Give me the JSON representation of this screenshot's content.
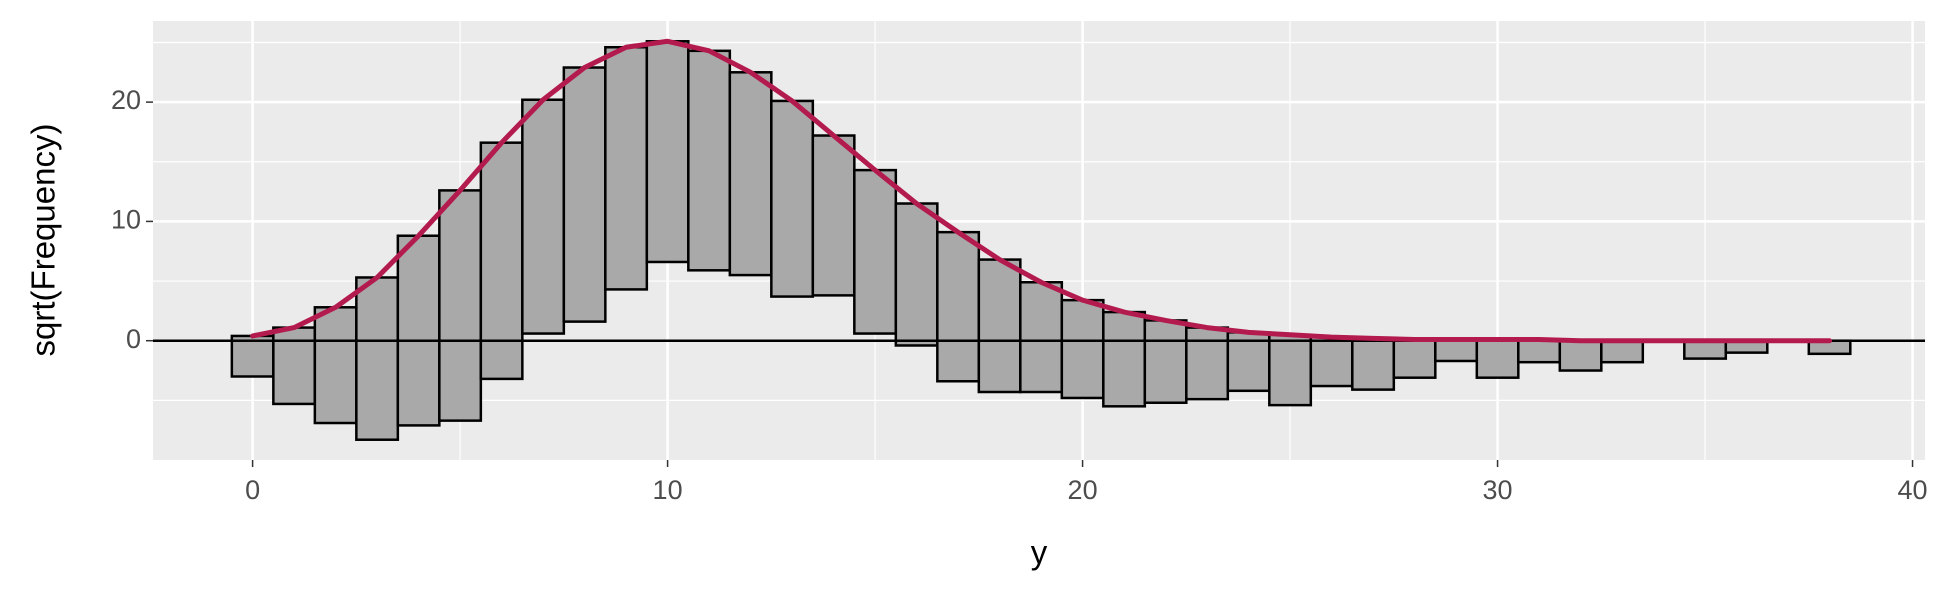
{
  "chart_data": {
    "type": "rootogram",
    "x_label": "y",
    "y_label": "sqrt(Frequency)",
    "x": [
      0,
      1,
      2,
      3,
      4,
      5,
      6,
      7,
      8,
      9,
      10,
      11,
      12,
      13,
      14,
      15,
      16,
      17,
      18,
      19,
      20,
      21,
      22,
      23,
      24,
      25,
      26,
      27,
      28,
      29,
      30,
      31,
      32,
      33,
      34,
      35,
      36,
      37,
      38
    ],
    "values": [
      3.4,
      6.4,
      9.7,
      13.6,
      15.9,
      19.3,
      19.8,
      19.6,
      21.3,
      20.3,
      18.5,
      18.4,
      17.0,
      16.4,
      13.4,
      13.7,
      11.9,
      12.5,
      11.1,
      9.2,
      8.2,
      7.9,
      6.9,
      6.0,
      4.9,
      5.9,
      4.1,
      4.3,
      3.2,
      1.8,
      3.2,
      1.9,
      2.5,
      1.8,
      0,
      1.5,
      1.0,
      0,
      1.1
    ],
    "fitted": [
      0.4,
      1.1,
      2.8,
      5.3,
      8.8,
      12.6,
      16.6,
      20.2,
      22.9,
      24.6,
      25.1,
      24.3,
      22.5,
      20.1,
      17.2,
      14.3,
      11.5,
      9.1,
      6.8,
      4.9,
      3.4,
      2.4,
      1.7,
      1.1,
      0.7,
      0.5,
      0.3,
      0.2,
      0.1,
      0.1,
      0.1,
      0.1,
      0,
      0,
      0,
      0,
      0,
      0,
      0
    ],
    "bar_color": "#a9a9a9",
    "line_color": "#b31b4f",
    "xlim": [
      -2.4,
      40.3
    ],
    "ylim": [
      -10,
      26.8
    ],
    "xticks": [
      0,
      10,
      20,
      30,
      40
    ],
    "yticks": [
      0,
      10,
      20
    ],
    "grid": true
  }
}
